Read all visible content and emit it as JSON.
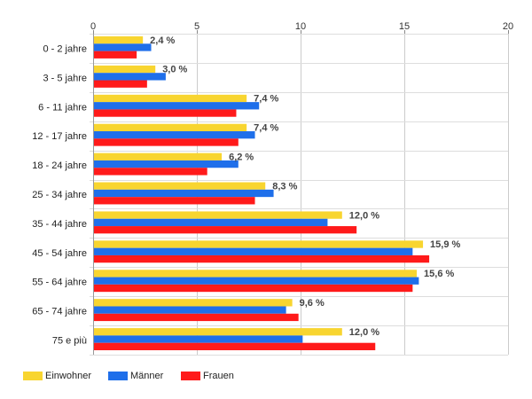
{
  "chart_data": {
    "type": "bar",
    "orientation": "horizontal",
    "categories": [
      "0 - 2 jahre",
      "3 - 5 jahre",
      "6 - 11 jahre",
      "12 - 17 jahre",
      "18 - 24 jahre",
      "25 - 34 jahre",
      "35 - 44 jahre",
      "45 - 54 jahre",
      "55 - 64 jahre",
      "65 - 74 jahre",
      "75 e più"
    ],
    "series": [
      {
        "name": "Einwohner",
        "color": "#f8d530",
        "values": [
          2.4,
          3.0,
          7.4,
          7.4,
          6.2,
          8.3,
          12.0,
          15.9,
          15.6,
          9.6,
          12.0
        ]
      },
      {
        "name": "Männer",
        "color": "#1f6fea",
        "values": [
          2.8,
          3.5,
          8.0,
          7.8,
          7.0,
          8.7,
          11.3,
          15.4,
          15.7,
          9.3,
          10.1
        ]
      },
      {
        "name": "Frauen",
        "color": "#ff1a1a",
        "values": [
          2.1,
          2.6,
          6.9,
          7.0,
          5.5,
          7.8,
          12.7,
          16.2,
          15.4,
          9.9,
          13.6
        ]
      }
    ],
    "data_labels": [
      "2,4 %",
      "3,0 %",
      "7,4 %",
      "7,4 %",
      "6,2 %",
      "8,3 %",
      "12,0 %",
      "15,9 %",
      "15,6 %",
      "9,6 %",
      "12,0 %"
    ],
    "x_ticks": [
      "0",
      "5",
      "10",
      "15",
      "20"
    ],
    "xlim": [
      0,
      20
    ],
    "x_axis_position": "top",
    "grid": true,
    "legend_position": "bottom-left",
    "title": "",
    "xlabel": "",
    "ylabel": ""
  }
}
